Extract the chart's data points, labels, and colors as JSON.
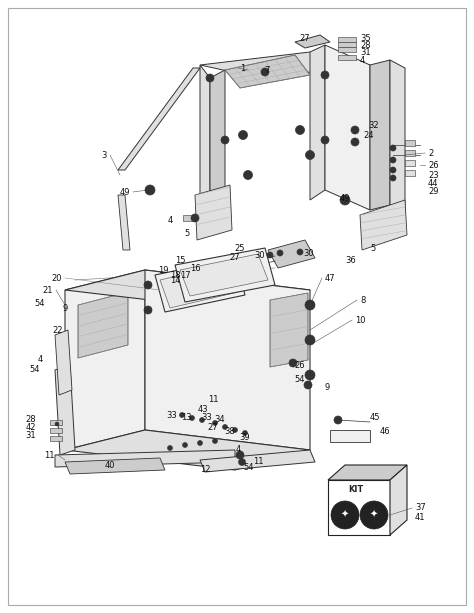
{
  "figsize": [
    4.74,
    6.13
  ],
  "dpi": 100,
  "bg": "#ffffff",
  "border": "#aaaaaa",
  "lc": "#333333",
  "lc2": "#666666",
  "gray1": "#f0f0f0",
  "gray2": "#e0e0e0",
  "gray3": "#cccccc",
  "gray4": "#aaaaaa",
  "dark": "#222222",
  "fs": 5.5
}
